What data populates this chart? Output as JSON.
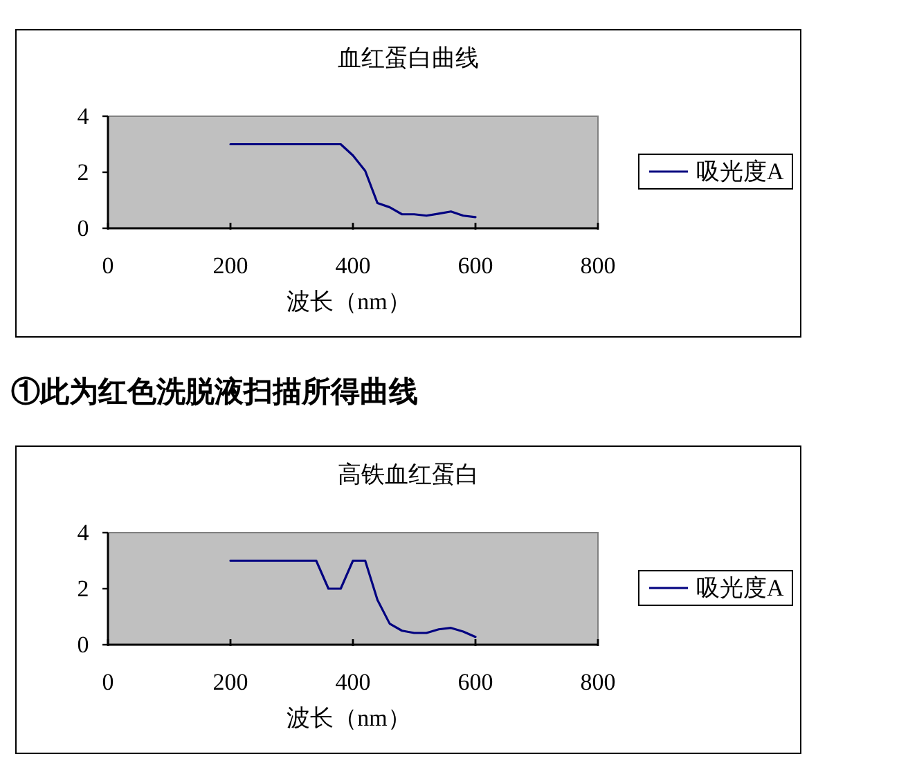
{
  "chart_data": [
    {
      "type": "line",
      "title": "血红蛋白曲线",
      "xlabel": "波长（nm）",
      "x": [
        200,
        220,
        240,
        260,
        280,
        300,
        320,
        340,
        360,
        380,
        400,
        420,
        440,
        460,
        480,
        500,
        520,
        540,
        560,
        580,
        600
      ],
      "series": [
        {
          "name": "吸光度A",
          "color": "#000080",
          "values": [
            3,
            3,
            3,
            3,
            3,
            3,
            3,
            3,
            3,
            3,
            2.6,
            2.05,
            0.9,
            0.75,
            0.5,
            0.5,
            0.45,
            0.52,
            0.6,
            0.45,
            0.4
          ]
        }
      ],
      "xlim": [
        0,
        800
      ],
      "xticks": [
        0,
        200,
        400,
        600,
        800
      ],
      "ylim": [
        0,
        4
      ],
      "yticks": [
        0,
        2,
        4
      ],
      "legend": "right",
      "annotations": [
        "①此为红色洗脱液扫描所得曲线"
      ]
    },
    {
      "type": "line",
      "title": "高铁血红蛋白",
      "xlabel": "波长（nm）",
      "x": [
        200,
        220,
        240,
        260,
        280,
        300,
        320,
        340,
        360,
        380,
        400,
        420,
        440,
        460,
        480,
        500,
        520,
        540,
        560,
        580,
        600
      ],
      "series": [
        {
          "name": "吸光度A",
          "color": "#000080",
          "values": [
            3,
            3,
            3,
            3,
            3,
            3,
            3,
            3,
            2,
            2,
            3,
            3,
            1.6,
            0.75,
            0.5,
            0.42,
            0.42,
            0.55,
            0.6,
            0.47,
            0.28
          ]
        }
      ],
      "xlim": [
        0,
        800
      ],
      "xticks": [
        0,
        200,
        400,
        600,
        800
      ],
      "ylim": [
        0,
        4
      ],
      "yticks": [
        0,
        2,
        4
      ],
      "legend": "right"
    }
  ]
}
